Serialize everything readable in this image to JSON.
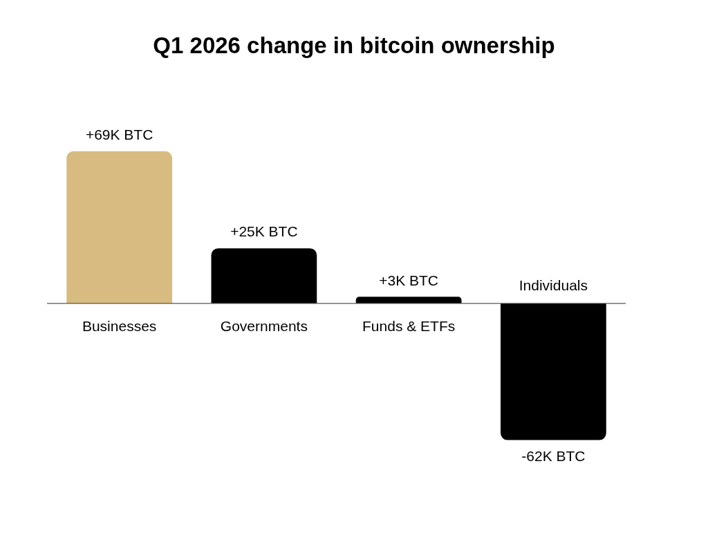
{
  "chart_data": {
    "type": "bar",
    "title": "Q1 2026 change in bitcoin ownership",
    "categories": [
      "Businesses",
      "Governments",
      "Funds & ETFs",
      "Individuals"
    ],
    "values": [
      69,
      25,
      3,
      -62
    ],
    "colors": [
      "#d8bb80",
      "#000000",
      "#000000",
      "#000000"
    ],
    "value_labels": [
      "+69K BTC",
      "+25K BTC",
      "+3K BTC",
      "-62K BTC"
    ],
    "tick_labels": "x"
  }
}
